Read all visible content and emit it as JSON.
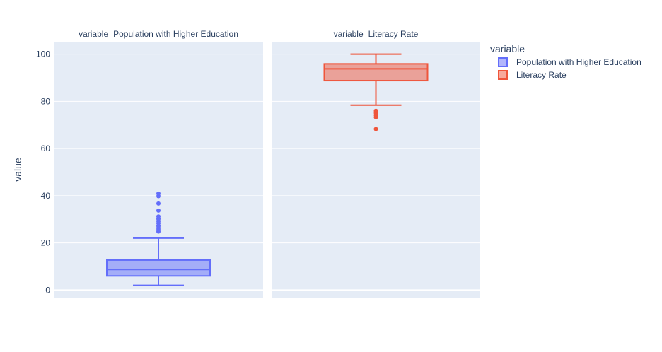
{
  "chart_data": {
    "type": "box",
    "ylabel": "value",
    "ylim": [
      -3.5,
      105
    ],
    "yticks": [
      0,
      20,
      40,
      60,
      80,
      100
    ],
    "grid": true,
    "legend_title": "variable",
    "legend_position": "top-right",
    "panels": [
      {
        "title": "variable=Population with Higher Education",
        "series_name": "Population with Higher Education",
        "color": "#636efa",
        "fill": "rgba(99,110,250,0.5)",
        "min": 2,
        "q1": 6,
        "median": 8.7,
        "q3": 12.7,
        "max": 22,
        "outliers": [
          24.8,
          25.5,
          26.3,
          27.2,
          28.3,
          29.2,
          30.2,
          31.2,
          33.7,
          36.7,
          39.8,
          40.9
        ]
      },
      {
        "title": "variable=Literacy Rate",
        "series_name": "Literacy Rate",
        "color": "#ef553b",
        "fill": "rgba(239,85,59,0.5)",
        "min": 78.4,
        "q1": 88.8,
        "median": 93.8,
        "q3": 95.9,
        "max": 100,
        "outliers": [
          68.3,
          73.3,
          74.2,
          75.1,
          76
        ]
      }
    ]
  }
}
